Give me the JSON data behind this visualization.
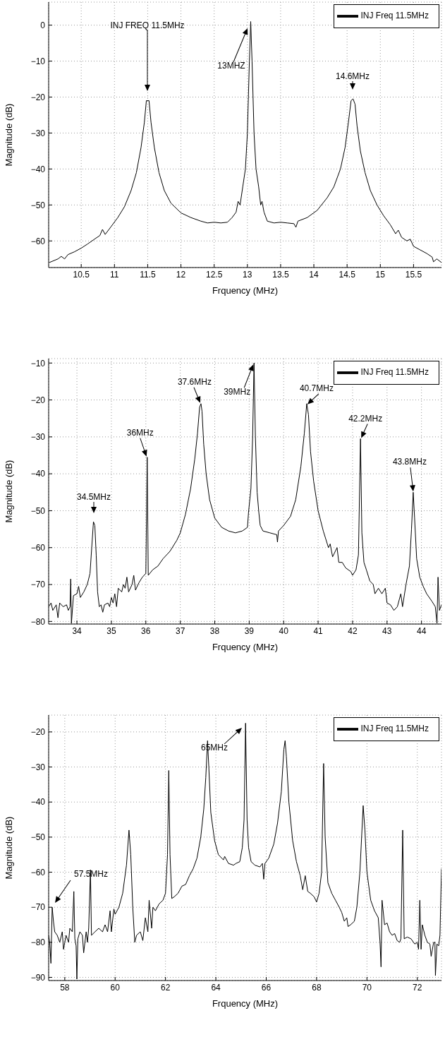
{
  "chart_data": [
    {
      "type": "line",
      "xlabel": "Frquency (MHz)",
      "ylabel": "Magnitude (dB)",
      "xlim": [
        10.01,
        15.92
      ],
      "ylim": [
        -67.4,
        6.4
      ],
      "xticks": [
        10.5,
        11,
        11.5,
        12,
        12.5,
        13,
        13.5,
        14,
        14.5,
        15,
        15.5
      ],
      "yticks": [
        -60,
        -50,
        -40,
        -30,
        -20,
        -10,
        0
      ],
      "grid": true,
      "legend": "top right",
      "x": [
        10.02,
        10.15,
        10.2,
        10.25,
        10.3,
        10.4,
        10.5,
        10.6,
        10.7,
        10.78,
        10.82,
        10.86,
        10.95,
        11.05,
        11.15,
        11.25,
        11.33,
        11.4,
        11.45,
        11.48,
        11.52,
        11.55,
        11.6,
        11.67,
        11.75,
        11.85,
        12.0,
        12.15,
        12.3,
        12.4,
        12.5,
        12.6,
        12.7,
        12.77,
        12.83,
        12.86,
        12.89,
        12.93,
        12.97,
        13.0,
        13.03,
        13.05,
        13.07,
        13.1,
        13.13,
        13.17,
        13.2,
        13.22,
        13.25,
        13.3,
        13.4,
        13.5,
        13.6,
        13.7,
        13.73,
        13.76,
        13.9,
        14.05,
        14.2,
        14.3,
        14.4,
        14.47,
        14.52,
        14.56,
        14.59,
        14.62,
        14.65,
        14.7,
        14.77,
        14.85,
        14.95,
        15.05,
        15.15,
        15.23,
        15.27,
        15.32,
        15.4,
        15.45,
        15.5,
        15.6,
        15.7,
        15.78,
        15.8,
        15.85,
        15.92
      ],
      "series": [
        {
          "name": "INJ Freq 11.5MHz",
          "color": "#000000",
          "values": [
            -66,
            -65,
            -64.3,
            -65,
            -63.8,
            -63,
            -62,
            -60.8,
            -59.5,
            -58.5,
            -56.8,
            -58.2,
            -56,
            -53.5,
            -50.5,
            -46,
            -41,
            -34,
            -27,
            -21,
            -21,
            -27,
            -34,
            -41,
            -46,
            -49.5,
            -52.2,
            -53.5,
            -54.5,
            -55,
            -54.8,
            -55,
            -54.8,
            -53.5,
            -52,
            -49,
            -50,
            -45,
            -40,
            -30,
            -10,
            1,
            -10,
            -30,
            -40,
            -45,
            -50,
            -49,
            -52,
            -54.5,
            -55,
            -54.8,
            -55,
            -55.2,
            -56.2,
            -54.5,
            -53.5,
            -51.5,
            -48,
            -45,
            -40,
            -34,
            -27,
            -21,
            -20.5,
            -22,
            -28,
            -35,
            -41,
            -46,
            -50,
            -53,
            -55.5,
            -58,
            -57,
            -59,
            -60,
            -59.5,
            -61.5,
            -62.5,
            -63.5,
            -64.5,
            -65.8,
            -65,
            -66
          ]
        }
      ],
      "annotations": [
        "INJ FREQ 11.5MHz",
        "13MHZ",
        "14.6MHz"
      ]
    },
    {
      "type": "line",
      "xlabel": "Frquency (MHz)",
      "ylabel": "Magnitude (dB)",
      "xlim": [
        33.18,
        44.58
      ],
      "ylim": [
        -80.7,
        -8.8
      ],
      "xticks": [
        34,
        35,
        36,
        37,
        38,
        39,
        40,
        41,
        42,
        43,
        44
      ],
      "yticks": [
        -80,
        -70,
        -60,
        -50,
        -40,
        -30,
        -20,
        -10
      ],
      "grid": true,
      "legend": "top right",
      "x": [
        33.18,
        33.25,
        33.3,
        33.4,
        33.45,
        33.5,
        33.6,
        33.7,
        33.75,
        33.8,
        33.82,
        33.84,
        33.9,
        34.0,
        34.05,
        34.1,
        34.2,
        34.3,
        34.38,
        34.43,
        34.48,
        34.52,
        34.56,
        34.6,
        34.65,
        34.7,
        34.75,
        34.8,
        34.9,
        34.95,
        35.0,
        35.05,
        35.1,
        35.15,
        35.2,
        35.3,
        35.35,
        35.4,
        35.45,
        35.5,
        35.6,
        35.65,
        35.7,
        35.8,
        35.9,
        36.0,
        36.04,
        36.07,
        36.2,
        36.35,
        36.5,
        36.7,
        36.9,
        37.0,
        37.15,
        37.3,
        37.42,
        37.5,
        37.56,
        37.6,
        37.63,
        37.68,
        37.75,
        37.85,
        38.0,
        38.2,
        38.4,
        38.6,
        38.8,
        38.95,
        38.98,
        39.05,
        39.1,
        39.14,
        39.18,
        39.23,
        39.28,
        39.32,
        39.4,
        39.6,
        39.8,
        39.82,
        39.85,
        40.0,
        40.2,
        40.35,
        40.5,
        40.6,
        40.67,
        40.72,
        40.78,
        40.87,
        41.0,
        41.15,
        41.3,
        41.35,
        41.42,
        41.55,
        41.6,
        41.7,
        41.8,
        41.95,
        42.0,
        42.1,
        42.17,
        42.23,
        42.27,
        42.33,
        42.4,
        42.5,
        42.6,
        42.65,
        42.75,
        42.85,
        42.95,
        43.0,
        43.1,
        43.2,
        43.3,
        43.4,
        43.45,
        43.55,
        43.65,
        43.71,
        43.76,
        43.8,
        43.86,
        43.95,
        44.05,
        44.15,
        44.3,
        44.4,
        44.45,
        44.48,
        44.52,
        44.58
      ],
      "series": [
        {
          "name": "INJ Freq 11.5MHz",
          "color": "#000000",
          "values": [
            -76,
            -75,
            -77,
            -75.5,
            -79,
            -75,
            -76,
            -75.5,
            -77,
            -76,
            -68.5,
            -80.5,
            -73,
            -72.5,
            -70.5,
            -73.5,
            -72,
            -70,
            -67,
            -60,
            -53,
            -54,
            -62,
            -72,
            -76,
            -75.5,
            -77.5,
            -75.5,
            -75,
            -76,
            -73.5,
            -75,
            -72.5,
            -76,
            -71,
            -72,
            -70,
            -71,
            -68,
            -72,
            -70,
            -67.5,
            -71.5,
            -69.5,
            -68,
            -67,
            -35.5,
            -67.5,
            -66,
            -65,
            -63,
            -61,
            -58,
            -56,
            -51,
            -44,
            -36,
            -29,
            -22,
            -21,
            -23,
            -32,
            -40,
            -47,
            -52,
            -54.5,
            -55.5,
            -56,
            -55.5,
            -54.5,
            -50.5,
            -44,
            -30,
            -10,
            -30,
            -45,
            -50.5,
            -54,
            -55.5,
            -56,
            -56.5,
            -58.5,
            -55.5,
            -54,
            -51.5,
            -47,
            -38,
            -29,
            -21,
            -24,
            -34,
            -42,
            -50,
            -55.5,
            -60,
            -59,
            -62.5,
            -60,
            -64,
            -64,
            -65.5,
            -66.5,
            -67.5,
            -66,
            -62,
            -30.5,
            -56,
            -64,
            -66,
            -69,
            -70,
            -72.5,
            -71,
            -72.5,
            -71,
            -75,
            -75.5,
            -77,
            -76,
            -72.5,
            -76,
            -70,
            -65,
            -55,
            -45,
            -52,
            -63,
            -68,
            -70.5,
            -72.5,
            -74.5,
            -76,
            -80.5,
            -68,
            -77,
            -75.5
          ]
        }
      ],
      "annotations": [
        "34.5MHz",
        {
          "text": "36MHz",
          "x": 36.04,
          "y": -35.5
        },
        {
          "text": "37.6MHz",
          "x": 37.6,
          "y": -21
        },
        {
          "text": "39MHz",
          "x": 39.14,
          "y": -10
        },
        {
          "text": "40.7MHz",
          "x": 40.67,
          "y": -21
        },
        {
          "text": "42.2MHz",
          "x": 42.23,
          "y": -30.5
        },
        {
          "text": "43.8MHz",
          "x": 43.76,
          "y": -45
        }
      ]
    },
    {
      "type": "line",
      "xlabel": "Frquency (MHz)",
      "ylabel": "Magnitude (dB)",
      "xlim": [
        57.36,
        72.96
      ],
      "ylim": [
        -90.9,
        -15.2
      ],
      "xticks": [
        58,
        60,
        62,
        64,
        66,
        68,
        70,
        72
      ],
      "yticks": [
        -90,
        -80,
        -70,
        -60,
        -50,
        -40,
        -30,
        -20
      ],
      "grid": true,
      "legend": "top right",
      "x": [
        57.36,
        57.4,
        57.45,
        57.5,
        57.55,
        57.6,
        57.7,
        57.8,
        57.9,
        57.95,
        58.05,
        58.15,
        58.2,
        58.3,
        58.36,
        58.4,
        58.45,
        58.48,
        58.52,
        58.6,
        58.7,
        58.75,
        58.85,
        58.9,
        58.95,
        59.02,
        59.06,
        59.2,
        59.35,
        59.5,
        59.6,
        59.7,
        59.8,
        59.85,
        59.95,
        60.0,
        60.15,
        60.3,
        60.45,
        60.55,
        60.62,
        60.7,
        60.78,
        60.85,
        61.0,
        61.1,
        61.2,
        61.3,
        61.35,
        61.45,
        61.5,
        61.6,
        61.75,
        61.9,
        62.0,
        62.08,
        62.13,
        62.18,
        62.25,
        62.35,
        62.5,
        62.65,
        62.8,
        62.95,
        63.1,
        63.25,
        63.4,
        63.52,
        63.6,
        63.67,
        63.72,
        63.8,
        63.95,
        64.1,
        64.3,
        64.35,
        64.5,
        64.7,
        64.8,
        64.95,
        65.05,
        65.12,
        65.18,
        65.24,
        65.3,
        65.4,
        65.55,
        65.75,
        65.85,
        65.9,
        65.95,
        66.1,
        66.3,
        66.45,
        66.6,
        66.7,
        66.75,
        66.8,
        66.9,
        67.05,
        67.2,
        67.35,
        67.45,
        67.55,
        67.65,
        67.75,
        67.9,
        68.0,
        68.1,
        68.2,
        68.28,
        68.34,
        68.45,
        68.6,
        68.75,
        68.9,
        69.0,
        69.1,
        69.2,
        69.25,
        69.35,
        69.5,
        69.6,
        69.72,
        69.85,
        69.92,
        70.0,
        70.15,
        70.3,
        70.45,
        70.52,
        70.56,
        70.6,
        70.7,
        70.8,
        70.9,
        71.0,
        71.1,
        71.2,
        71.3,
        71.35,
        71.42,
        71.48,
        71.6,
        71.75,
        71.9,
        72.0,
        72.05,
        72.1,
        72.15,
        72.2,
        72.3,
        72.4,
        72.5,
        72.55,
        72.65,
        72.7,
        72.72,
        72.78,
        72.85,
        72.9,
        72.96
      ],
      "series": [
        {
          "name": "INJ Freq 11.5MHz",
          "color": "#000000",
          "values": [
            -78,
            -80,
            -86,
            -70,
            -74,
            -77,
            -78,
            -80,
            -77,
            -82,
            -78,
            -80,
            -76,
            -77,
            -65.5,
            -79,
            -81,
            -90.5,
            -79,
            -77,
            -78,
            -83,
            -77,
            -80,
            -76,
            -59.3,
            -78,
            -77,
            -76,
            -77,
            -75,
            -77,
            -71,
            -77,
            -70.5,
            -72,
            -70,
            -66,
            -58,
            -48,
            -55,
            -70,
            -80,
            -78,
            -77,
            -79.5,
            -73,
            -77,
            -68,
            -76,
            -70,
            -71,
            -69,
            -68,
            -66,
            -55,
            -31,
            -55,
            -67.5,
            -67,
            -66,
            -64,
            -63.5,
            -61,
            -59,
            -56,
            -50,
            -42,
            -33,
            -22.5,
            -30,
            -43,
            -51,
            -55,
            -56.5,
            -55.5,
            -57.5,
            -58,
            -57.5,
            -57,
            -53,
            -45,
            -17.5,
            -45,
            -53,
            -57,
            -58,
            -58.5,
            -57.5,
            -62,
            -57.5,
            -56,
            -52,
            -46,
            -37,
            -25,
            -22.5,
            -27,
            -40,
            -51,
            -57,
            -61,
            -65,
            -61,
            -65.5,
            -66,
            -67,
            -68.5,
            -66,
            -60,
            -29,
            -50,
            -63,
            -66,
            -68,
            -70,
            -71.5,
            -74,
            -73,
            -75.5,
            -75,
            -74,
            -70,
            -60,
            -41,
            -48,
            -60,
            -68,
            -71,
            -73,
            -80,
            -87,
            -68,
            -75,
            -74.5,
            -77,
            -78,
            -77.5,
            -79.5,
            -80,
            -79,
            -48,
            -79,
            -78.5,
            -79,
            -80.5,
            -80,
            -82,
            -68,
            -82,
            -75,
            -78,
            -80,
            -80.5,
            -84,
            -80,
            -80,
            -89.5,
            -80.5,
            -81,
            -78,
            -59
          ]
        }
      ],
      "annotations": [
        "57.5MHz",
        "65MHz"
      ]
    }
  ]
}
